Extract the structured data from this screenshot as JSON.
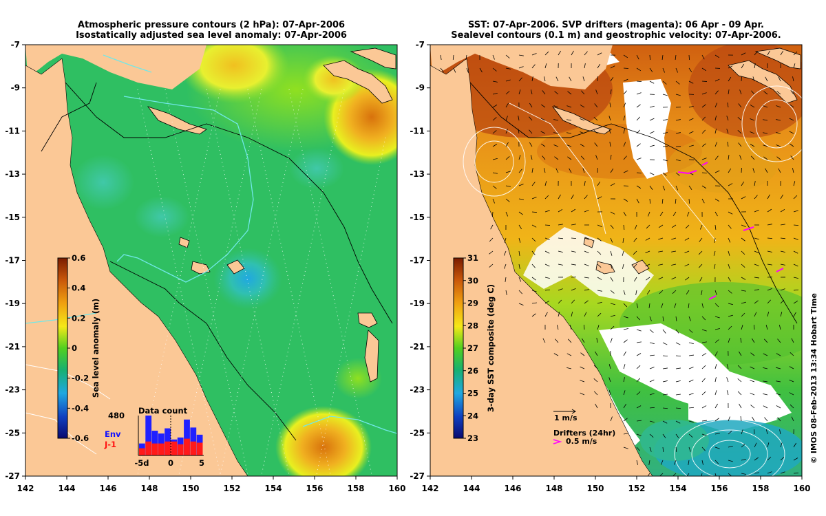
{
  "left_panel": {
    "title_line1": "Atmospheric pressure contours (2 hPa): 07-Apr-2006",
    "title_line2": "Isostatically adjusted sea level anomaly: 07-Apr-2006",
    "colorbar": {
      "label": "Sea level anomaly (m)",
      "ticks": [
        "0.6",
        "0.4",
        "0.2",
        "0",
        "-0.2",
        "-0.4",
        "-0.6"
      ]
    },
    "data_count": {
      "title": "Data count",
      "max_label": "480",
      "env_label": "Env",
      "j1_label": "J-1",
      "x_ticks": [
        "-5d",
        "0",
        "5"
      ],
      "env_bars": [
        0.3,
        1.0,
        0.62,
        0.55,
        0.68,
        0.4,
        0.45,
        0.9,
        0.7,
        0.52
      ],
      "j1_bars": [
        0.18,
        0.35,
        0.3,
        0.3,
        0.35,
        0.35,
        0.28,
        0.42,
        0.35,
        0.32
      ]
    }
  },
  "right_panel": {
    "title_line1": "SST: 07-Apr-2006. SVP drifters (magenta): 06 Apr - 09 Apr.",
    "title_line2": "Sealevel contours (0.1 m) and geostrophic velocity: 07-Apr-2006.",
    "colorbar": {
      "label": "3-day SST composite (deg C)",
      "ticks": [
        "31",
        "30",
        "29",
        "28",
        "27",
        "26",
        "25",
        "24",
        "23"
      ]
    },
    "velocity_legend": "1 m/s",
    "drifter_legend": "Drifters (24hr)",
    "drifter_speed": "0.5 m/s"
  },
  "axes": {
    "lat_ticks": [
      "-7",
      "-9",
      "-11",
      "-13",
      "-15",
      "-17",
      "-19",
      "-21",
      "-23",
      "-25",
      "-27"
    ],
    "lon_ticks": [
      "142",
      "144",
      "146",
      "148",
      "150",
      "152",
      "154",
      "156",
      "158",
      "160"
    ]
  },
  "credit": "© IMOS 08-Feb-2013 13:34 Hobart Time",
  "colors": {
    "land": "#fbc896",
    "ocean_base": "#2bbf5a",
    "drifter": "#ff00ff"
  }
}
